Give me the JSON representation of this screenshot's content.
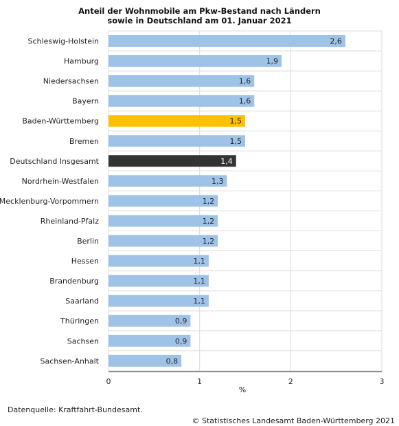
{
  "chart_data": {
    "type": "bar",
    "orientation": "horizontal",
    "title_line1": "Anteil der Wohnmobile am Pkw-Bestand nach Ländern",
    "title_line2": "sowie in Deutschland am 01. Januar 2021",
    "xlabel": "%",
    "xlim": [
      0,
      3
    ],
    "xticks": [
      "0",
      "1",
      "2",
      "3"
    ],
    "grid": true,
    "categories": [
      "Schleswig-Holstein",
      "Hamburg",
      "Niedersachsen",
      "Bayern",
      "Baden-Württemberg",
      "Bremen",
      "Deutschland Insgesamt",
      "Nordrhein-Westfalen",
      "Mecklenburg-Vorpommern",
      "Rheinland-Pfalz",
      "Berlin",
      "Hessen",
      "Brandenburg",
      "Saarland",
      "Thüringen",
      "Sachsen",
      "Sachsen-Anhalt"
    ],
    "values": [
      2.6,
      1.9,
      1.6,
      1.6,
      1.5,
      1.5,
      1.4,
      1.3,
      1.2,
      1.2,
      1.2,
      1.1,
      1.1,
      1.1,
      0.9,
      0.9,
      0.8
    ],
    "value_labels": [
      "2,6",
      "1,9",
      "1,6",
      "1,6",
      "1,5",
      "1,5",
      "1,4",
      "1,3",
      "1,2",
      "1,2",
      "1,2",
      "1,1",
      "1,1",
      "1,1",
      "0,9",
      "0,9",
      "0,8"
    ],
    "colors": {
      "default": "#9fc3e7",
      "highlight_baden_wuerttemberg": "#ffc000",
      "highlight_deutschland": "#333333",
      "grid": "#dcdcdc"
    }
  },
  "footer": {
    "source": "Datenquelle: Kraftfahrt-Bundesamt.",
    "copyright": "© Statistisches Landesamt Baden-Württemberg 2021"
  }
}
